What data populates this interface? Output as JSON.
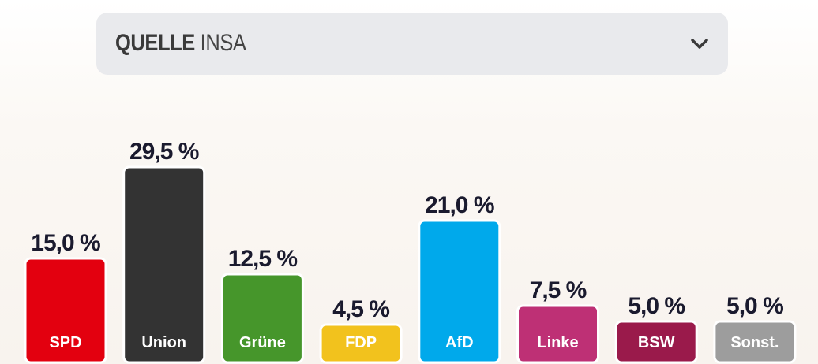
{
  "source": {
    "label": "QUELLE",
    "value": "INSA",
    "icon": "chevron-down-icon"
  },
  "chart_data": {
    "type": "bar",
    "categories": [
      "SPD",
      "Union",
      "Grüne",
      "FDP",
      "AfD",
      "Linke",
      "BSW",
      "Sonst."
    ],
    "values": [
      15.0,
      29.5,
      12.5,
      4.5,
      21.0,
      7.5,
      5.0,
      5.0
    ],
    "value_labels": [
      "15,0 %",
      "29,5 %",
      "12,5 %",
      "4,5 %",
      "21,0 %",
      "7,5 %",
      "5,0 %",
      "5,0 %"
    ],
    "colors": [
      "#e3000f",
      "#333333",
      "#46962b",
      "#f2c21d",
      "#00a9eb",
      "#be3075",
      "#9a1a4b",
      "#9d9d9d"
    ],
    "title": "",
    "xlabel": "",
    "ylabel": "",
    "grid": false,
    "legend": "none"
  }
}
